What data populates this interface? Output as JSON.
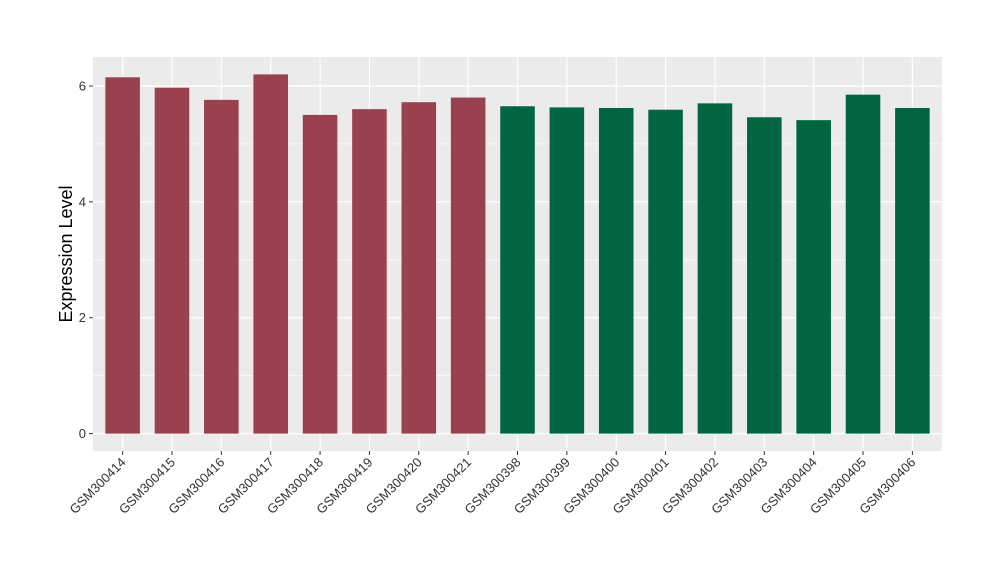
{
  "chart_data": {
    "type": "bar",
    "title": "",
    "xlabel": "",
    "ylabel": "Expression Level",
    "ylim": [
      -0.3,
      6.5
    ],
    "yticks": [
      0,
      2,
      4,
      6
    ],
    "grid": true,
    "legend": "none",
    "categories": [
      "GSM300414",
      "GSM300415",
      "GSM300416",
      "GSM300417",
      "GSM300418",
      "GSM300419",
      "GSM300420",
      "GSM300421",
      "GSM300398",
      "GSM300399",
      "GSM300400",
      "GSM300401",
      "GSM300402",
      "GSM300403",
      "GSM300404",
      "GSM300405",
      "GSM300406"
    ],
    "values": [
      6.15,
      5.97,
      5.76,
      6.2,
      5.5,
      5.6,
      5.72,
      5.8,
      5.65,
      5.63,
      5.62,
      5.59,
      5.7,
      5.46,
      5.41,
      5.85,
      5.62
    ],
    "bar_colors": [
      "#9a4150",
      "#9a4150",
      "#9a4150",
      "#9a4150",
      "#9a4150",
      "#9a4150",
      "#9a4150",
      "#9a4150",
      "#006641",
      "#006641",
      "#006641",
      "#006641",
      "#006641",
      "#006641",
      "#006641",
      "#006641",
      "#006641"
    ],
    "panel_background": "#ebebeb",
    "grid_color": "#ffffff"
  }
}
